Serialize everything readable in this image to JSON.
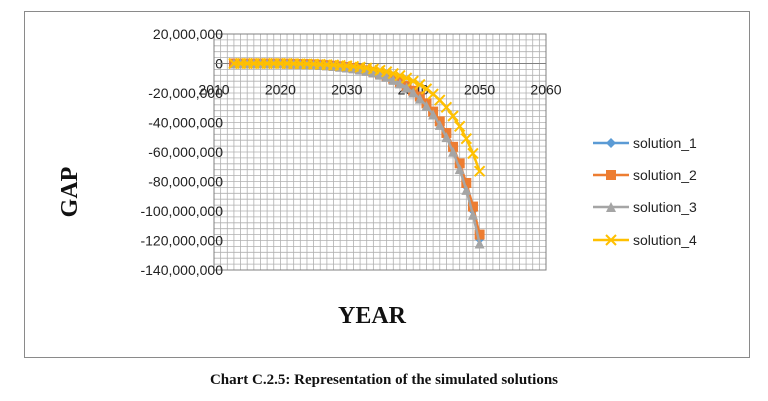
{
  "caption": "Chart C.2.5: Representation of the simulated solutions",
  "colors": {
    "solution_1": "#5b9bd5",
    "solution_2": "#ed7d31",
    "solution_3": "#a5a5a5",
    "solution_4": "#ffc000",
    "grid": "#b0b0b0",
    "axis": "#808080"
  },
  "chart_data": {
    "type": "line",
    "title": "",
    "xlabel": "YEAR",
    "ylabel": "GAP",
    "xlim": [
      2010,
      2060
    ],
    "ylim": [
      -140000000,
      20000000
    ],
    "xticks": [
      "2010",
      "2020",
      "2030",
      "2040",
      "2050",
      "2060"
    ],
    "yticks": [
      "20,000,000",
      "0",
      "-20,000,000",
      "-40,000,000",
      "-60,000,000",
      "-80,000,000",
      "-100,000,000",
      "-120,000,000",
      "-140,000,000"
    ],
    "grid": true,
    "legend_position": "right",
    "x": [
      2013,
      2014,
      2015,
      2016,
      2017,
      2018,
      2019,
      2020,
      2021,
      2022,
      2023,
      2024,
      2025,
      2026,
      2027,
      2028,
      2029,
      2030,
      2031,
      2032,
      2033,
      2034,
      2035,
      2036,
      2037,
      2038,
      2039,
      2040,
      2041,
      2042,
      2043,
      2044,
      2045,
      2046,
      2047,
      2048,
      2049,
      2050
    ],
    "series": [
      {
        "name": "solution_1",
        "marker": "diamond",
        "values": [
          0,
          0,
          0,
          0,
          0,
          0,
          0,
          0,
          -100000,
          -200000,
          -300000,
          -500000,
          -700000,
          -900000,
          -1200000,
          -1600000,
          -2000000,
          -2500000,
          -3100000,
          -3900000,
          -4800000,
          -5900000,
          -7200000,
          -8800000,
          -10700000,
          -13000000,
          -15700000,
          -19000000,
          -23000000,
          -27800000,
          -33500000,
          -40300000,
          -48400000,
          -58100000,
          -69600000,
          -83300000,
          -99700000,
          -119000000
        ]
      },
      {
        "name": "solution_2",
        "marker": "square",
        "values": [
          0,
          0,
          0,
          0,
          0,
          0,
          0,
          0,
          -100000,
          -200000,
          -300000,
          -400000,
          -600000,
          -800000,
          -1100000,
          -1500000,
          -1900000,
          -2400000,
          -3000000,
          -3700000,
          -4600000,
          -5700000,
          -7000000,
          -8500000,
          -10400000,
          -12600000,
          -15300000,
          -18500000,
          -22400000,
          -27000000,
          -32600000,
          -39200000,
          -47100000,
          -56500000,
          -67700000,
          -81000000,
          -97000000,
          -116000000
        ]
      },
      {
        "name": "solution_3",
        "marker": "triangle",
        "values": [
          0,
          0,
          0,
          0,
          0,
          0,
          0,
          0,
          -100000,
          -200000,
          -400000,
          -600000,
          -800000,
          -1000000,
          -1300000,
          -1700000,
          -2200000,
          -2700000,
          -3300000,
          -4100000,
          -5000000,
          -6100000,
          -7500000,
          -9100000,
          -11100000,
          -13500000,
          -16300000,
          -19700000,
          -23800000,
          -28700000,
          -34600000,
          -41600000,
          -49900000,
          -59800000,
          -71600000,
          -85700000,
          -102500000,
          -122000000
        ]
      },
      {
        "name": "solution_4",
        "marker": "x",
        "values": [
          0,
          0,
          0,
          0,
          0,
          0,
          0,
          0,
          0,
          -100000,
          -200000,
          -300000,
          -400000,
          -600000,
          -800000,
          -1000000,
          -1300000,
          -1600000,
          -2000000,
          -2500000,
          -3100000,
          -3800000,
          -4600000,
          -5600000,
          -6800000,
          -8200000,
          -9900000,
          -11900000,
          -14300000,
          -17200000,
          -20700000,
          -24800000,
          -29700000,
          -35600000,
          -42600000,
          -51000000,
          -61000000,
          -73000000
        ]
      }
    ]
  }
}
